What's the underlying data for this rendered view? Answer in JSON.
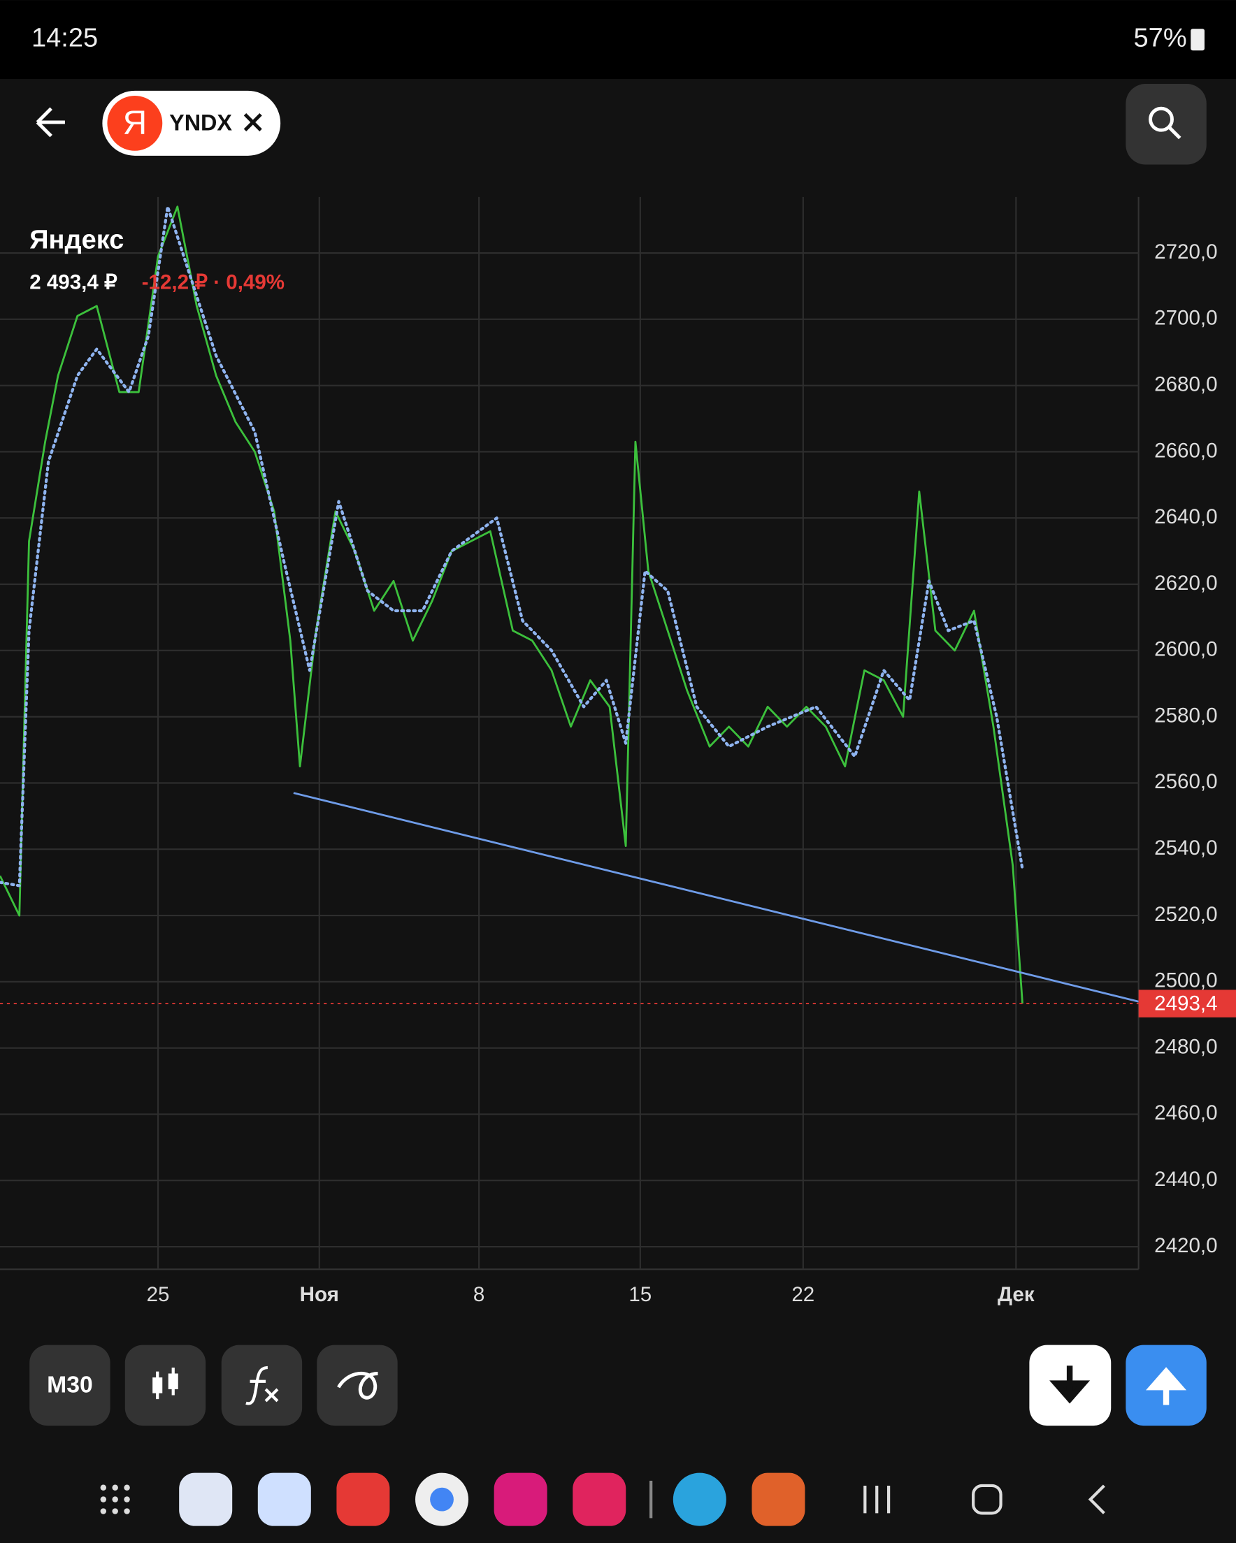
{
  "status_bar": {
    "time": "14:25",
    "battery": "57%"
  },
  "header": {
    "logo": "Я",
    "ticker": "YNDX"
  },
  "instrument": {
    "name": "Яндекс",
    "price": "2 493,4 ₽",
    "change": "-12,2 ₽ · 0,49%"
  },
  "toolbar": {
    "timeframe": "M30"
  },
  "chart_data": {
    "type": "line",
    "grid": true,
    "xlim": [
      0,
      35.3
    ],
    "ylim": [
      2413.2,
      2736.9
    ],
    "xticks": [
      {
        "value": 4.9,
        "label": "25"
      },
      {
        "value": 9.9,
        "label": "Ноя"
      },
      {
        "value": 14.85,
        "label": "8"
      },
      {
        "value": 19.85,
        "label": "15"
      },
      {
        "value": 24.9,
        "label": "22"
      },
      {
        "value": 31.5,
        "label": "Дек"
      }
    ],
    "yticks": [
      {
        "value": 2420,
        "label": "2420,0"
      },
      {
        "value": 2440,
        "label": "2440,0"
      },
      {
        "value": 2460,
        "label": "2460,0"
      },
      {
        "value": 2480,
        "label": "2480,0"
      },
      {
        "value": 2500,
        "label": "2500,0"
      },
      {
        "value": 2520,
        "label": "2520,0"
      },
      {
        "value": 2540,
        "label": "2540,0"
      },
      {
        "value": 2560,
        "label": "2560,0"
      },
      {
        "value": 2580,
        "label": "2580,0"
      },
      {
        "value": 2600,
        "label": "2600,0"
      },
      {
        "value": 2620,
        "label": "2620,0"
      },
      {
        "value": 2640,
        "label": "2640,0"
      },
      {
        "value": 2660,
        "label": "2660,0"
      },
      {
        "value": 2680,
        "label": "2680,0"
      },
      {
        "value": 2700,
        "label": "2700,0"
      },
      {
        "value": 2720,
        "label": "2720,0"
      }
    ],
    "series": [
      {
        "color": "#3cc03c",
        "style": "solid",
        "x": [
          0,
          0.6,
          0.9,
          1.4,
          1.8,
          2.4,
          3.0,
          3.7,
          4.3,
          4.9,
          5.5,
          6.1,
          6.7,
          7.3,
          7.9,
          8.5,
          9.0,
          9.3,
          9.8,
          10.4,
          11.0,
          11.6,
          12.2,
          12.8,
          13.4,
          14.0,
          14.6,
          15.2,
          15.9,
          16.5,
          17.1,
          17.7,
          18.3,
          18.9,
          19.4,
          19.7,
          20.1,
          20.7,
          21.3,
          22.0,
          22.6,
          23.2,
          23.8,
          24.4,
          25.0,
          25.6,
          26.2,
          26.8,
          27.4,
          28.0,
          28.5,
          29.0,
          29.6,
          30.2,
          30.8,
          31.4,
          31.7
        ],
        "values": [
          2532,
          2520,
          2633,
          2663,
          2683,
          2701,
          2704,
          2678,
          2678,
          2719,
          2734,
          2704,
          2683,
          2669,
          2660,
          2642,
          2603,
          2565,
          2606,
          2642,
          2630,
          2612,
          2621,
          2603,
          2615,
          2630,
          2633,
          2636,
          2606,
          2603,
          2594,
          2577,
          2591,
          2583,
          2541,
          2663,
          2624,
          2606,
          2588,
          2571,
          2577,
          2571,
          2583,
          2577,
          2583,
          2577,
          2565,
          2594,
          2591,
          2580,
          2648,
          2606,
          2600,
          2612,
          2577,
          2535,
          2493.4
        ]
      },
      {
        "color": "#8fb4f0",
        "style": "dotted",
        "x": [
          0,
          0.6,
          0.9,
          1.5,
          2.4,
          3.0,
          4.0,
          4.6,
          5.2,
          6.1,
          6.7,
          7.9,
          8.8,
          9.6,
          10.5,
          11.4,
          12.2,
          13.1,
          14.0,
          15.4,
          16.2,
          17.1,
          18.1,
          18.8,
          19.4,
          20.0,
          20.7,
          21.6,
          22.6,
          23.8,
          25.3,
          26.5,
          27.4,
          28.2,
          28.8,
          29.4,
          30.2,
          30.9,
          31.7
        ],
        "values": [
          2530,
          2529,
          2606,
          2657,
          2683,
          2691,
          2678,
          2695,
          2734,
          2707,
          2689,
          2666,
          2627,
          2594,
          2645,
          2618,
          2612,
          2612,
          2630,
          2640,
          2609,
          2600,
          2583,
          2591,
          2572,
          2624,
          2618,
          2583,
          2571,
          2577,
          2583,
          2568,
          2594,
          2585,
          2621,
          2606,
          2609,
          2580,
          2534
        ]
      },
      {
        "color": "#6f9ce8",
        "style": "solid",
        "x": [
          9.1,
          35.3
        ],
        "values": [
          2557,
          2494
        ]
      }
    ],
    "last_price": {
      "value": 2493.4,
      "label": "2493,4",
      "color": "#e53935"
    }
  }
}
